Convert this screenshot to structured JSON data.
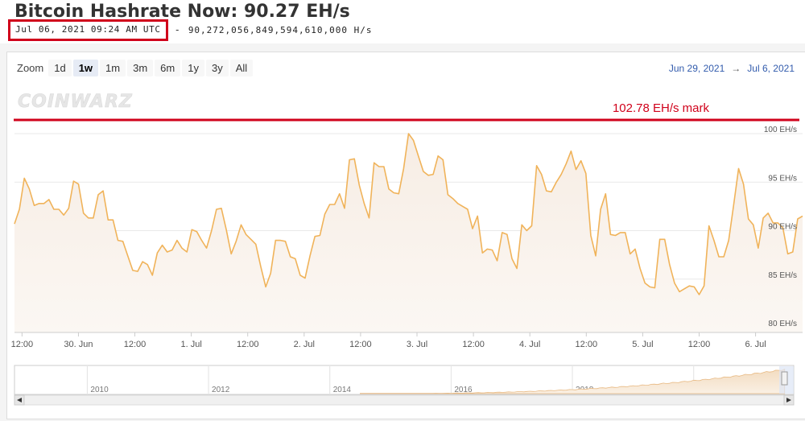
{
  "header": {
    "title": "Bitcoin Hashrate Now: 90.27 EH/s",
    "timestamp": "Jul 06, 2021 09:24 AM UTC",
    "dash": "-",
    "hashrate_hs": "90,272,056,849,594,610,000 H/s",
    "highlight_color": "#d0021b"
  },
  "toolbar": {
    "zoom_label": "Zoom",
    "buttons": [
      "1d",
      "1w",
      "1m",
      "3m",
      "6m",
      "1y",
      "3y",
      "All"
    ],
    "active": "1w",
    "range_from": "Jun 29, 2021",
    "range_arrow": "→",
    "range_to": "Jul 6, 2021"
  },
  "watermark": "COINWARZ",
  "mark": {
    "label": "102.78 EH/s mark",
    "value": 102.78,
    "color": "#d0021b"
  },
  "chart_data": {
    "type": "area",
    "ylabel_unit": "EH/s",
    "ylim": [
      80,
      100
    ],
    "y_ticks": [
      "80 EH/s",
      "85 EH/s",
      "90 EH/s",
      "95 EH/s",
      "100 EH/s"
    ],
    "y_tick_values": [
      80,
      85,
      90,
      95,
      100
    ],
    "x_tick_labels": [
      "12:00",
      "30. Jun",
      "12:00",
      "1. Jul",
      "12:00",
      "2. Jul",
      "12:00",
      "3. Jul",
      "12:00",
      "4. Jul",
      "12:00",
      "5. Jul",
      "12:00",
      "6. Jul"
    ],
    "x_tick_hours": [
      -6,
      6,
      18,
      30,
      42,
      54,
      66,
      78,
      90,
      102,
      114,
      126,
      138,
      150
    ],
    "x_range_hours": [
      -7.6,
      160
    ],
    "x_origin": "Jun 30, 2021 00:00",
    "series": [
      {
        "color": "#f0b35a",
        "values": [
          90.7,
          92.2,
          95.4,
          94.3,
          92.6,
          92.8,
          92.8,
          93.2,
          92.2,
          92.2,
          91.6,
          92.3,
          95.1,
          94.8,
          91.8,
          91.3,
          91.3,
          93.7,
          94.1,
          91.1,
          91.1,
          89.0,
          88.9,
          87.4,
          85.9,
          85.8,
          86.8,
          86.5,
          85.4,
          87.7,
          88.5,
          87.8,
          88.0,
          89.0,
          88.2,
          87.8,
          90.1,
          89.9,
          89.0,
          88.2,
          90.0,
          92.2,
          92.3,
          90.1,
          87.6,
          88.9,
          90.6,
          89.6,
          89.1,
          88.6,
          86.3,
          84.2,
          85.6,
          89.0,
          89.0,
          88.9,
          87.3,
          87.1,
          85.4,
          85.1,
          87.4,
          89.4,
          89.5,
          91.7,
          92.7,
          92.7,
          93.8,
          92.3,
          97.3,
          97.4,
          94.7,
          92.8,
          91.3,
          97.0,
          96.6,
          96.6,
          94.3,
          93.9,
          93.8,
          96.4,
          100.0,
          99.3,
          97.7,
          96.1,
          95.7,
          95.8,
          97.7,
          97.3,
          93.7,
          93.3,
          92.8,
          92.5,
          92.2,
          90.2,
          91.5,
          87.7,
          88.1,
          88.0,
          86.9,
          89.8,
          89.6,
          87.1,
          86.1,
          90.6,
          90.0,
          90.5,
          96.7,
          95.8,
          94.1,
          94.0,
          95.0,
          95.8,
          96.9,
          98.2,
          96.3,
          97.2,
          95.9,
          89.5,
          87.4,
          92.2,
          93.8,
          89.6,
          89.5,
          89.8,
          89.8,
          87.6,
          88.1,
          86.1,
          84.6,
          84.2,
          84.1,
          89.1,
          89.1,
          86.5,
          84.6,
          83.7,
          84.0,
          84.3,
          84.2,
          83.4,
          84.3,
          90.5,
          89.0,
          87.3,
          87.3,
          89.0,
          92.6,
          96.4,
          94.8,
          91.2,
          90.6,
          88.2,
          91.3,
          91.8,
          90.8,
          90.8,
          90.3,
          87.6,
          87.8,
          91.2,
          91.5
        ]
      }
    ],
    "navigator": {
      "year_labels": [
        "2010",
        "2012",
        "2014",
        "2016",
        "2018",
        "2020"
      ],
      "year_values": [
        2010,
        2012,
        2014,
        2016,
        2018,
        2020
      ],
      "x_range": [
        2008.8,
        2021.65
      ]
    }
  }
}
